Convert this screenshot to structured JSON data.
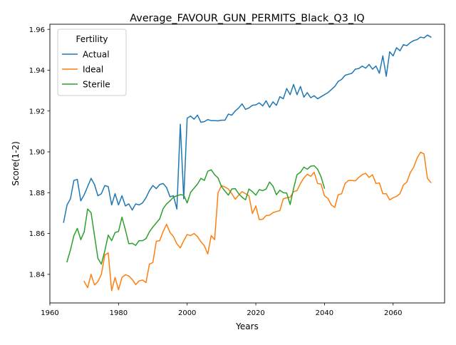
{
  "chart_data": {
    "type": "line",
    "title": "Average_FAVOUR_GUN_PERMITS_Black_Q3_IQ",
    "xlabel": "Years",
    "ylabel": "Score(1-2)",
    "xlim": [
      1960,
      2075
    ],
    "ylim": [
      1.826,
      1.9625
    ],
    "xticks": [
      1960,
      1980,
      2000,
      2020,
      2040,
      2060
    ],
    "yticks": [
      1.84,
      1.86,
      1.88,
      1.9,
      1.92,
      1.94,
      1.96
    ],
    "ytick_labels": [
      "1.84",
      "1.86",
      "1.88",
      "1.90",
      "1.92",
      "1.94",
      "1.96"
    ],
    "grid": false,
    "legend": {
      "title": "Fertility",
      "position": "top-left"
    },
    "series": [
      {
        "name": "Actual",
        "color": "#1f77b4",
        "points": [
          [
            1964,
            1.8655
          ],
          [
            1965,
            1.874
          ],
          [
            1966,
            1.877
          ],
          [
            1967,
            1.886
          ],
          [
            1968,
            1.8865
          ],
          [
            1969,
            1.876
          ],
          [
            1970,
            1.879
          ],
          [
            1971,
            1.883
          ],
          [
            1972,
            1.887
          ],
          [
            1973,
            1.884
          ],
          [
            1974,
            1.8785
          ],
          [
            1975,
            1.8795
          ],
          [
            1976,
            1.8835
          ],
          [
            1977,
            1.883
          ],
          [
            1978,
            1.874
          ],
          [
            1979,
            1.8795
          ],
          [
            1980,
            1.874
          ],
          [
            1981,
            1.8785
          ],
          [
            1982,
            1.8735
          ],
          [
            1983,
            1.8745
          ],
          [
            1984,
            1.8715
          ],
          [
            1985,
            1.8745
          ],
          [
            1986,
            1.874
          ],
          [
            1987,
            1.875
          ],
          [
            1988,
            1.8775
          ],
          [
            1989,
            1.881
          ],
          [
            1990,
            1.8835
          ],
          [
            1991,
            1.882
          ],
          [
            1992,
            1.884
          ],
          [
            1993,
            1.8845
          ],
          [
            1994,
            1.8825
          ],
          [
            1995,
            1.878
          ],
          [
            1996,
            1.8785
          ],
          [
            1997,
            1.872
          ],
          [
            1998,
            1.9135
          ],
          [
            1999,
            1.877
          ],
          [
            2000,
            1.9165
          ],
          [
            2001,
            1.9175
          ],
          [
            2002,
            1.916
          ],
          [
            2003,
            1.918
          ],
          [
            2004,
            1.9145
          ],
          [
            2005,
            1.9148
          ],
          [
            2006,
            1.9158
          ],
          [
            2007,
            1.9153
          ],
          [
            2008,
            1.9153
          ],
          [
            2009,
            1.9152
          ],
          [
            2010,
            1.9155
          ],
          [
            2011,
            1.9155
          ],
          [
            2012,
            1.9185
          ],
          [
            2013,
            1.918
          ],
          [
            2014,
            1.92
          ],
          [
            2015,
            1.9215
          ],
          [
            2016,
            1.9235
          ],
          [
            2017,
            1.9208
          ],
          [
            2018,
            1.9215
          ],
          [
            2019,
            1.9228
          ],
          [
            2020,
            1.923
          ],
          [
            2021,
            1.924
          ],
          [
            2022,
            1.9225
          ],
          [
            2023,
            1.925
          ],
          [
            2024,
            1.9218
          ],
          [
            2025,
            1.9245
          ],
          [
            2026,
            1.9228
          ],
          [
            2027,
            1.927
          ],
          [
            2028,
            1.926
          ],
          [
            2029,
            1.931
          ],
          [
            2030,
            1.928
          ],
          [
            2031,
            1.933
          ],
          [
            2032,
            1.928
          ],
          [
            2033,
            1.932
          ],
          [
            2034,
            1.9268
          ],
          [
            2035,
            1.929
          ],
          [
            2036,
            1.9265
          ],
          [
            2037,
            1.9275
          ],
          [
            2038,
            1.926
          ],
          [
            2039,
            1.927
          ],
          [
            2040,
            1.928
          ],
          [
            2041,
            1.929
          ],
          [
            2042,
            1.9305
          ],
          [
            2043,
            1.932
          ],
          [
            2044,
            1.9345
          ],
          [
            2045,
            1.9355
          ],
          [
            2046,
            1.9375
          ],
          [
            2047,
            1.938
          ],
          [
            2048,
            1.9385
          ],
          [
            2049,
            1.9405
          ],
          [
            2050,
            1.9408
          ],
          [
            2051,
            1.942
          ],
          [
            2052,
            1.941
          ],
          [
            2053,
            1.9428
          ],
          [
            2054,
            1.9405
          ],
          [
            2055,
            1.942
          ],
          [
            2056,
            1.9385
          ],
          [
            2057,
            1.947
          ],
          [
            2058,
            1.937
          ],
          [
            2059,
            1.949
          ],
          [
            2060,
            1.947
          ],
          [
            2061,
            1.951
          ],
          [
            2062,
            1.9495
          ],
          [
            2063,
            1.9525
          ],
          [
            2064,
            1.952
          ],
          [
            2065,
            1.9535
          ],
          [
            2066,
            1.9545
          ],
          [
            2067,
            1.955
          ],
          [
            2068,
            1.9562
          ],
          [
            2069,
            1.9558
          ],
          [
            2070,
            1.9572
          ],
          [
            2071,
            1.9562
          ]
        ]
      },
      {
        "name": "Ideal",
        "color": "#ff7f0e",
        "points": [
          [
            1970,
            1.8365
          ],
          [
            1971,
            1.8335
          ],
          [
            1972,
            1.84
          ],
          [
            1973,
            1.8348
          ],
          [
            1974,
            1.8365
          ],
          [
            1975,
            1.84
          ],
          [
            1976,
            1.8495
          ],
          [
            1977,
            1.8505
          ],
          [
            1978,
            1.832
          ],
          [
            1979,
            1.8385
          ],
          [
            1980,
            1.8325
          ],
          [
            1981,
            1.8385
          ],
          [
            1982,
            1.8398
          ],
          [
            1983,
            1.8392
          ],
          [
            1984,
            1.8375
          ],
          [
            1985,
            1.835
          ],
          [
            1986,
            1.8368
          ],
          [
            1987,
            1.8372
          ],
          [
            1988,
            1.836
          ],
          [
            1989,
            1.845
          ],
          [
            1990,
            1.8458
          ],
          [
            1991,
            1.8562
          ],
          [
            1992,
            1.8565
          ],
          [
            1993,
            1.861
          ],
          [
            1994,
            1.8645
          ],
          [
            1995,
            1.8605
          ],
          [
            1996,
            1.8585
          ],
          [
            1997,
            1.855
          ],
          [
            1998,
            1.853
          ],
          [
            1999,
            1.8565
          ],
          [
            2000,
            1.8595
          ],
          [
            2001,
            1.859
          ],
          [
            2002,
            1.86
          ],
          [
            2003,
            1.8585
          ],
          [
            2004,
            1.856
          ],
          [
            2005,
            1.854
          ],
          [
            2006,
            1.85
          ],
          [
            2007,
            1.859
          ],
          [
            2008,
            1.857
          ],
          [
            2009,
            1.88
          ],
          [
            2010,
            1.8835
          ],
          [
            2011,
            1.8828
          ],
          [
            2012,
            1.8818
          ],
          [
            2013,
            1.8795
          ],
          [
            2014,
            1.8768
          ],
          [
            2015,
            1.8788
          ],
          [
            2016,
            1.8805
          ],
          [
            2017,
            1.8795
          ],
          [
            2018,
            1.8785
          ],
          [
            2019,
            1.8698
          ],
          [
            2020,
            1.8735
          ],
          [
            2021,
            1.8668
          ],
          [
            2022,
            1.867
          ],
          [
            2023,
            1.8688
          ],
          [
            2024,
            1.869
          ],
          [
            2025,
            1.8702
          ],
          [
            2026,
            1.8708
          ],
          [
            2027,
            1.8712
          ],
          [
            2028,
            1.877
          ],
          [
            2029,
            1.8775
          ],
          [
            2030,
            1.8778
          ],
          [
            2031,
            1.8805
          ],
          [
            2032,
            1.881
          ],
          [
            2033,
            1.8845
          ],
          [
            2034,
            1.8872
          ],
          [
            2035,
            1.889
          ],
          [
            2036,
            1.888
          ],
          [
            2037,
            1.89
          ],
          [
            2038,
            1.8845
          ],
          [
            2039,
            1.8842
          ],
          [
            2040,
            1.8785
          ],
          [
            2041,
            1.8772
          ],
          [
            2042,
            1.874
          ],
          [
            2043,
            1.8728
          ],
          [
            2044,
            1.879
          ],
          [
            2045,
            1.8795
          ],
          [
            2046,
            1.8845
          ],
          [
            2047,
            1.886
          ],
          [
            2048,
            1.886
          ],
          [
            2049,
            1.8858
          ],
          [
            2050,
            1.8875
          ],
          [
            2051,
            1.8888
          ],
          [
            2052,
            1.8895
          ],
          [
            2053,
            1.8875
          ],
          [
            2054,
            1.8888
          ],
          [
            2055,
            1.8845
          ],
          [
            2056,
            1.8848
          ],
          [
            2057,
            1.8795
          ],
          [
            2058,
            1.8795
          ],
          [
            2059,
            1.8765
          ],
          [
            2060,
            1.8775
          ],
          [
            2061,
            1.8782
          ],
          [
            2062,
            1.8795
          ],
          [
            2063,
            1.8838
          ],
          [
            2064,
            1.8852
          ],
          [
            2065,
            1.8898
          ],
          [
            2066,
            1.8925
          ],
          [
            2067,
            1.897
          ],
          [
            2068,
            1.8998
          ],
          [
            2069,
            1.899
          ],
          [
            2070,
            1.887
          ],
          [
            2071,
            1.885
          ]
        ]
      },
      {
        "name": "Sterile",
        "color": "#2ca02c",
        "points": [
          [
            1965,
            1.8462
          ],
          [
            1966,
            1.852
          ],
          [
            1967,
            1.859
          ],
          [
            1968,
            1.8625
          ],
          [
            1969,
            1.857
          ],
          [
            1970,
            1.8608
          ],
          [
            1971,
            1.872
          ],
          [
            1972,
            1.8702
          ],
          [
            1973,
            1.859
          ],
          [
            1974,
            1.8478
          ],
          [
            1975,
            1.845
          ],
          [
            1976,
            1.8515
          ],
          [
            1977,
            1.8592
          ],
          [
            1978,
            1.8565
          ],
          [
            1979,
            1.8605
          ],
          [
            1980,
            1.861
          ],
          [
            1981,
            1.868
          ],
          [
            1982,
            1.8618
          ],
          [
            1983,
            1.855
          ],
          [
            1984,
            1.8552
          ],
          [
            1985,
            1.8542
          ],
          [
            1986,
            1.8565
          ],
          [
            1987,
            1.8565
          ],
          [
            1988,
            1.8575
          ],
          [
            1989,
            1.8608
          ],
          [
            1990,
            1.8632
          ],
          [
            1991,
            1.8652
          ],
          [
            1992,
            1.8672
          ],
          [
            1993,
            1.8722
          ],
          [
            1994,
            1.8745
          ],
          [
            1995,
            1.876
          ],
          [
            1996,
            1.8778
          ],
          [
            1997,
            1.8785
          ],
          [
            1998,
            1.879
          ],
          [
            1999,
            1.8788
          ],
          [
            2000,
            1.875
          ],
          [
            2001,
            1.8802
          ],
          [
            2002,
            1.8822
          ],
          [
            2003,
            1.8842
          ],
          [
            2004,
            1.887
          ],
          [
            2005,
            1.886
          ],
          [
            2006,
            1.8905
          ],
          [
            2007,
            1.8912
          ],
          [
            2008,
            1.8888
          ],
          [
            2009,
            1.8872
          ],
          [
            2010,
            1.883
          ],
          [
            2011,
            1.8808
          ],
          [
            2012,
            1.8788
          ],
          [
            2013,
            1.8818
          ],
          [
            2014,
            1.882
          ],
          [
            2015,
            1.8795
          ],
          [
            2016,
            1.8778
          ],
          [
            2017,
            1.8765
          ],
          [
            2018,
            1.8818
          ],
          [
            2019,
            1.8805
          ],
          [
            2020,
            1.8788
          ],
          [
            2021,
            1.8815
          ],
          [
            2022,
            1.881
          ],
          [
            2023,
            1.8818
          ],
          [
            2024,
            1.8852
          ],
          [
            2025,
            1.8832
          ],
          [
            2026,
            1.879
          ],
          [
            2027,
            1.8812
          ],
          [
            2028,
            1.88
          ],
          [
            2029,
            1.8798
          ],
          [
            2030,
            1.8742
          ],
          [
            2031,
            1.882
          ],
          [
            2032,
            1.8888
          ],
          [
            2033,
            1.89
          ],
          [
            2034,
            1.8925
          ],
          [
            2035,
            1.8915
          ],
          [
            2036,
            1.893
          ],
          [
            2037,
            1.8932
          ],
          [
            2038,
            1.8915
          ],
          [
            2039,
            1.8878
          ],
          [
            2040,
            1.8822
          ]
        ]
      }
    ]
  }
}
